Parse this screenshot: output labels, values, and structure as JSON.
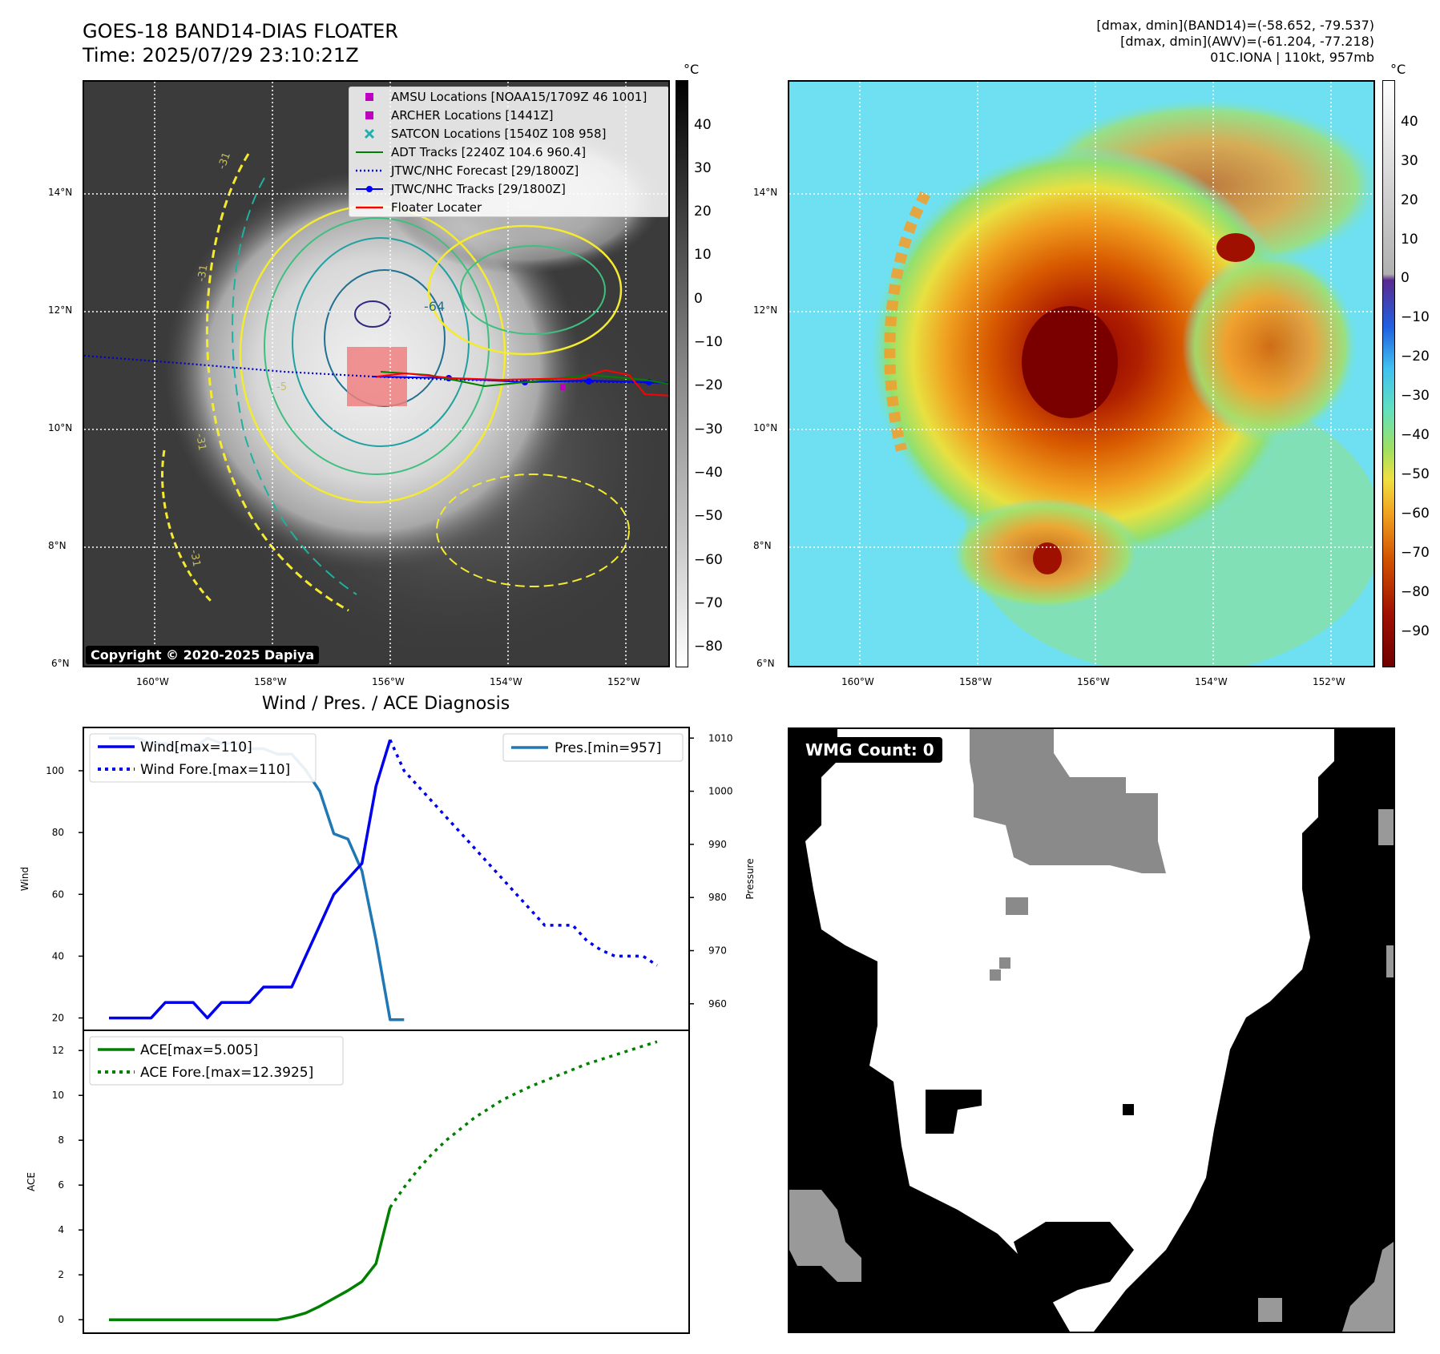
{
  "header": {
    "title_line1": "GOES-18 BAND14-DIAS FLOATER",
    "title_line2": "Time: 2025/07/29 23:10:21Z",
    "info_line1": "[dmax, dmin](BAND14)=(-58.652, -79.537)",
    "info_line2": "[dmax, dmin](AWV)=(-61.204, -77.218)",
    "info_line3": "01C.IONA | 110kt, 957mb"
  },
  "map": {
    "lon_ticks": [
      "160°W",
      "158°W",
      "156°W",
      "154°W",
      "152°W"
    ],
    "lat_ticks": [
      "14°N",
      "12°N",
      "10°N",
      "8°N",
      "6°N"
    ],
    "copyright": "Copyright © 2020-2025 Dapiya",
    "contour_labels": [
      "-64",
      "-31",
      "-31",
      "-31",
      "-31",
      "-5"
    ],
    "colorbar_unit": "°C",
    "gray_colorbar_ticks": [
      "40",
      "30",
      "20",
      "10",
      "0",
      "−10",
      "−20",
      "−30",
      "−40",
      "−50",
      "−60",
      "−70",
      "−80"
    ],
    "color_colorbar_ticks": [
      "40",
      "30",
      "20",
      "10",
      "0",
      "−10",
      "−20",
      "−30",
      "−40",
      "−50",
      "−60",
      "−70",
      "−80",
      "−90"
    ],
    "legend": [
      {
        "label": "AMSU Locations [NOAA15/1709Z 46 1001]",
        "symbol": "square",
        "color": "#c000c0"
      },
      {
        "label": "ARCHER Locations [1441Z]",
        "symbol": "square",
        "color": "#c000c0"
      },
      {
        "label": "SATCON Locations [1540Z 108 958]",
        "symbol": "x",
        "color": "#20b0b0"
      },
      {
        "label": "ADT Tracks [2240Z 104.6 960.4]",
        "symbol": "line",
        "color": "#008000"
      },
      {
        "label": "JTWC/NHC Forecast [29/1800Z]",
        "symbol": "dotted",
        "color": "#0000cc"
      },
      {
        "label": "JTWC/NHC Tracks [29/1800Z]",
        "symbol": "linedot",
        "color": "#0000ff"
      },
      {
        "label": "Floater Locater",
        "symbol": "line",
        "color": "#ff0000"
      }
    ]
  },
  "wmg": {
    "label": "WMG Count: 0"
  },
  "chart_data": [
    {
      "type": "line",
      "title": "Wind / Pres. / ACE Diagnosis",
      "ylabel": "Wind",
      "ylim": [
        16,
        114
      ],
      "yticks": [
        20,
        40,
        60,
        80,
        100
      ],
      "y2label": "Pressure",
      "y2lim": [
        955,
        1012
      ],
      "y2ticks": [
        960,
        970,
        980,
        990,
        1000,
        1010
      ],
      "series": [
        {
          "name": "Wind[max=110]",
          "axis": "left",
          "color": "#0000ee",
          "style": "solid",
          "x": [
            0,
            1,
            2,
            3,
            4,
            5,
            6,
            7,
            8,
            9,
            10,
            11,
            12,
            13,
            14,
            15,
            16,
            17,
            18,
            19,
            20
          ],
          "values": [
            20,
            20,
            20,
            20,
            25,
            25,
            25,
            20,
            25,
            25,
            25,
            30,
            30,
            30,
            40,
            50,
            60,
            65,
            70,
            95,
            110
          ]
        },
        {
          "name": "Wind Fore.[max=110]",
          "axis": "left",
          "color": "#0000ee",
          "style": "dotted",
          "x": [
            20,
            21,
            22,
            23,
            24,
            25,
            26,
            27,
            28,
            29,
            30,
            31,
            32,
            33,
            34,
            35,
            36,
            37,
            38,
            39
          ],
          "values": [
            110,
            100,
            95,
            90,
            85,
            80,
            75,
            70,
            65,
            60,
            55,
            50,
            50,
            50,
            45,
            42,
            40,
            40,
            40,
            37
          ]
        },
        {
          "name": "Pres.[min=957]",
          "axis": "right",
          "color": "#1f77b4",
          "style": "solid",
          "x": [
            0,
            1,
            2,
            3,
            4,
            5,
            6,
            7,
            8,
            9,
            10,
            11,
            12,
            13,
            14,
            15,
            16,
            17,
            18,
            19,
            20,
            21
          ],
          "values": [
            1010,
            1010,
            1010,
            1009,
            1009,
            1008,
            1008,
            1010,
            1009,
            1009,
            1008,
            1008,
            1007,
            1007,
            1004,
            1000,
            992,
            991,
            985,
            972,
            957,
            957
          ]
        }
      ]
    },
    {
      "type": "line",
      "ylabel": "ACE",
      "ylim": [
        -0.6,
        12.9
      ],
      "yticks": [
        0,
        2,
        4,
        6,
        8,
        10,
        12
      ],
      "series": [
        {
          "name": "ACE[max=5.005]",
          "color": "#008000",
          "style": "solid",
          "x": [
            0,
            1,
            2,
            3,
            4,
            5,
            6,
            7,
            8,
            9,
            10,
            11,
            12,
            13,
            14,
            15,
            16,
            17,
            18,
            19,
            20
          ],
          "values": [
            0,
            0,
            0,
            0,
            0,
            0,
            0,
            0,
            0,
            0,
            0,
            0,
            0,
            0.12,
            0.3,
            0.6,
            0.95,
            1.3,
            1.7,
            2.5,
            5.005
          ]
        },
        {
          "name": "ACE Fore.[max=12.3925]",
          "color": "#008000",
          "style": "dotted",
          "x": [
            20,
            21,
            22,
            23,
            24,
            25,
            26,
            27,
            28,
            29,
            30,
            31,
            32,
            33,
            34,
            35,
            36,
            37,
            38,
            39
          ],
          "values": [
            5.005,
            5.9,
            6.7,
            7.4,
            8.0,
            8.5,
            9.0,
            9.4,
            9.8,
            10.1,
            10.4,
            10.65,
            10.9,
            11.15,
            11.4,
            11.6,
            11.8,
            12.0,
            12.2,
            12.3925
          ]
        }
      ]
    }
  ]
}
